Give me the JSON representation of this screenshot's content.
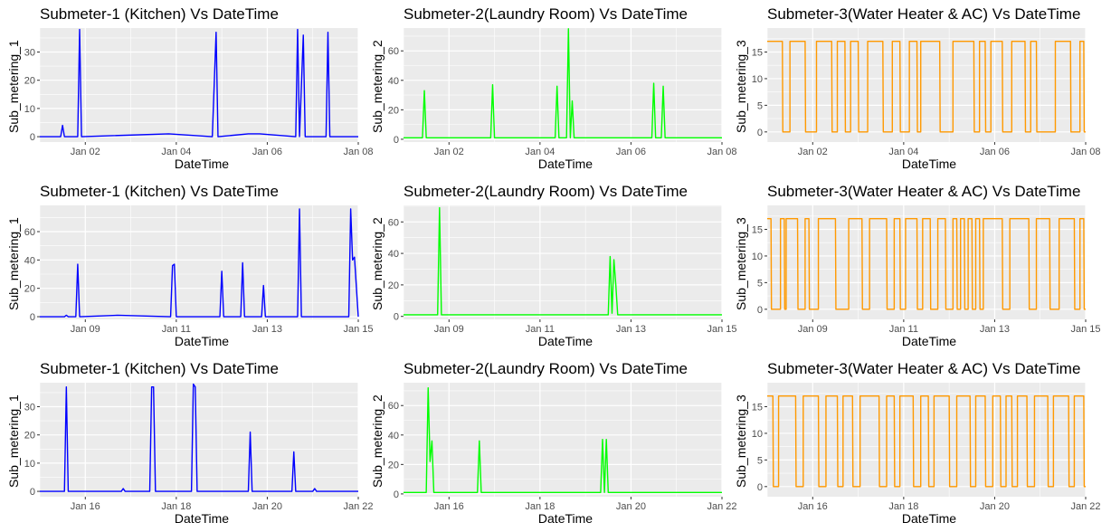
{
  "chart_data": [
    {
      "type": "line",
      "title": "Submeter-1 (Kitchen) Vs DateTime",
      "xlabel": "DateTime",
      "ylabel": "Sub_metering_1",
      "color": "#0000ff",
      "x_range": [
        "2007-01-01",
        "2007-01-08"
      ],
      "ylim": [
        0,
        38
      ],
      "yticks": [
        0,
        10,
        20,
        30
      ],
      "xticks": [
        "Jan 02",
        "Jan 04",
        "Jan 06",
        "Jan 08"
      ],
      "x": [
        "2007-01-01",
        "2007-01-01 11:00",
        "2007-01-01 12:00",
        "2007-01-01 13:00",
        "2007-01-01 20:00",
        "2007-01-01 21:00",
        "2007-01-01 22:00",
        "2007-01-03 20:00",
        "2007-01-04 19:00",
        "2007-01-04 21:00",
        "2007-01-04 22:00",
        "2007-01-05 14:00",
        "2007-01-05 20:00",
        "2007-01-06 15:00",
        "2007-01-06 16:00",
        "2007-01-06 17:00",
        "2007-01-06 19:00",
        "2007-01-06 20:00",
        "2007-01-07 07:00",
        "2007-01-07 08:00",
        "2007-01-07 09:00",
        "2007-01-08"
      ],
      "values": [
        0,
        0,
        4,
        0,
        0,
        38,
        0,
        1,
        0,
        37,
        0,
        1,
        1,
        0,
        38,
        0,
        36,
        0,
        0,
        37,
        0,
        0
      ]
    },
    {
      "type": "line",
      "title": "Submeter-2(Laundry Room) Vs DateTime",
      "xlabel": "DateTime",
      "ylabel": "Sub_metering_2",
      "color": "#00ff00",
      "x_range": [
        "2007-01-01",
        "2007-01-08"
      ],
      "ylim": [
        0,
        75
      ],
      "yticks": [
        0,
        20,
        40,
        60
      ],
      "xticks": [
        "Jan 02",
        "Jan 04",
        "Jan 06",
        "Jan 08"
      ],
      "x": [
        "2007-01-01",
        "2007-01-01 10:00",
        "2007-01-01 11:00",
        "2007-01-01 12:00",
        "2007-01-02 22:00",
        "2007-01-02 23:00",
        "2007-01-03 00:00",
        "2007-01-04 08:00",
        "2007-01-04 09:00",
        "2007-01-04 10:00",
        "2007-01-04 14:00",
        "2007-01-04 15:00",
        "2007-01-04 16:00",
        "2007-01-04 17:00",
        "2007-01-04 18:00",
        "2007-01-06 11:00",
        "2007-01-06 12:00",
        "2007-01-06 13:00",
        "2007-01-06 16:00",
        "2007-01-06 17:00",
        "2007-01-06 18:00",
        "2007-01-08"
      ],
      "values": [
        1,
        1,
        33,
        1,
        1,
        37,
        1,
        1,
        36,
        1,
        1,
        75,
        1,
        26,
        1,
        1,
        38,
        1,
        1,
        36,
        1,
        1
      ]
    },
    {
      "type": "line",
      "title": "Submeter-3(Water Heater & AC) Vs DateTime",
      "xlabel": "DateTime",
      "ylabel": "Sub_metering_3",
      "color": "#ff9900",
      "x_range": [
        "2007-01-01",
        "2007-01-08"
      ],
      "ylim": [
        0,
        19
      ],
      "yticks": [
        0,
        5,
        10,
        15
      ],
      "xticks": [
        "Jan 02",
        "Jan 04",
        "Jan 06",
        "Jan 08"
      ],
      "on_level": 17,
      "on_intervals": [
        [
          "2007-01-01 00:00",
          "2007-01-01 08:00"
        ],
        [
          "2007-01-01 12:00",
          "2007-01-01 20:00"
        ],
        [
          "2007-01-02 02:00",
          "2007-01-02 10:00"
        ],
        [
          "2007-01-02 13:00",
          "2007-01-02 17:00"
        ],
        [
          "2007-01-02 20:00",
          "2007-01-03 00:00"
        ],
        [
          "2007-01-03 05:00",
          "2007-01-03 13:00"
        ],
        [
          "2007-01-03 18:00",
          "2007-01-03 22:00"
        ],
        [
          "2007-01-04 03:00",
          "2007-01-04 07:00"
        ],
        [
          "2007-01-04 09:00",
          "2007-01-04 19:00"
        ],
        [
          "2007-01-05 02:00",
          "2007-01-05 13:00"
        ],
        [
          "2007-01-05 16:00",
          "2007-01-05 19:00"
        ],
        [
          "2007-01-05 22:00",
          "2007-01-06 04:00"
        ],
        [
          "2007-01-06 09:00",
          "2007-01-06 16:00"
        ],
        [
          "2007-01-06 19:00",
          "2007-01-06 22:00"
        ],
        [
          "2007-01-07 08:00",
          "2007-01-07 16:00"
        ],
        [
          "2007-01-07 21:00",
          "2007-01-07 23:00"
        ]
      ]
    },
    {
      "type": "line",
      "title": "Submeter-1 (Kitchen) Vs DateTime",
      "xlabel": "DateTime",
      "ylabel": "Sub_metering_1",
      "color": "#0000ff",
      "x_range": [
        "2007-01-08",
        "2007-01-15"
      ],
      "ylim": [
        0,
        78
      ],
      "yticks": [
        0,
        20,
        40,
        60
      ],
      "xticks": [
        "Jan 09",
        "Jan 11",
        "Jan 13",
        "Jan 15"
      ],
      "x": [
        "2007-01-08",
        "2007-01-08 13:00",
        "2007-01-08 14:00",
        "2007-01-08 15:00",
        "2007-01-08 19:00",
        "2007-01-08 20:00",
        "2007-01-08 21:00",
        "2007-01-09 17:00",
        "2007-01-10 21:00",
        "2007-01-10 22:00",
        "2007-01-10 23:00",
        "2007-01-11 00:00",
        "2007-01-11 23:00",
        "2007-01-12 00:00",
        "2007-01-12 01:00",
        "2007-01-12 10:00",
        "2007-01-12 11:00",
        "2007-01-12 12:00",
        "2007-01-12 21:00",
        "2007-01-12 22:00",
        "2007-01-12 23:00",
        "2007-01-13 16:00",
        "2007-01-13 17:00",
        "2007-01-13 18:00",
        "2007-01-14 19:00",
        "2007-01-14 20:00",
        "2007-01-14 21:00",
        "2007-01-14 22:00",
        "2007-01-15"
      ],
      "values": [
        0,
        0,
        1,
        0,
        0,
        37,
        0,
        1,
        0,
        36,
        37,
        0,
        0,
        32,
        0,
        0,
        38,
        0,
        0,
        22,
        0,
        0,
        76,
        0,
        0,
        76,
        40,
        42,
        0
      ]
    },
    {
      "type": "line",
      "title": "Submeter-2(Laundry Room) Vs DateTime",
      "xlabel": "DateTime",
      "ylabel": "Sub_metering_2",
      "color": "#00ff00",
      "x_range": [
        "2007-01-08",
        "2007-01-15"
      ],
      "ylim": [
        0,
        70
      ],
      "yticks": [
        0,
        20,
        40,
        60
      ],
      "xticks": [
        "Jan 09",
        "Jan 11",
        "Jan 13",
        "Jan 15"
      ],
      "x": [
        "2007-01-08",
        "2007-01-08 18:00",
        "2007-01-08 19:00",
        "2007-01-08 20:00",
        "2007-01-12 12:00",
        "2007-01-12 13:00",
        "2007-01-12 14:00",
        "2007-01-12 15:00",
        "2007-01-12 16:00",
        "2007-01-12 17:00",
        "2007-01-15"
      ],
      "values": [
        1,
        1,
        69,
        1,
        1,
        38,
        2,
        36,
        20,
        1,
        1
      ]
    },
    {
      "type": "line",
      "title": "Submeter-3(Water Heater & AC) Vs DateTime",
      "xlabel": "DateTime",
      "ylabel": "Sub_metering_3",
      "color": "#ff9900",
      "x_range": [
        "2007-01-08",
        "2007-01-15"
      ],
      "ylim": [
        0,
        19
      ],
      "yticks": [
        0,
        5,
        10,
        15
      ],
      "xticks": [
        "Jan 09",
        "Jan 11",
        "Jan 13",
        "Jan 15"
      ],
      "on_level": 17,
      "on_intervals": [
        [
          "2007-01-08 00:00",
          "2007-01-08 02:00"
        ],
        [
          "2007-01-08 07:00",
          "2007-01-08 09:00"
        ],
        [
          "2007-01-08 10:00",
          "2007-01-08 16:00"
        ],
        [
          "2007-01-08 20:00",
          "2007-01-08 22:00"
        ],
        [
          "2007-01-09 03:00",
          "2007-01-09 12:00"
        ],
        [
          "2007-01-09 19:00",
          "2007-01-10 02:00"
        ],
        [
          "2007-01-10 06:00",
          "2007-01-10 15:00"
        ],
        [
          "2007-01-10 19:00",
          "2007-01-10 22:00"
        ],
        [
          "2007-01-11 01:00",
          "2007-01-11 07:00"
        ],
        [
          "2007-01-11 10:00",
          "2007-01-11 14:00"
        ],
        [
          "2007-01-11 18:00",
          "2007-01-11 22:00"
        ],
        [
          "2007-01-12 02:00",
          "2007-01-12 04:00"
        ],
        [
          "2007-01-12 06:00",
          "2007-01-12 08:00"
        ],
        [
          "2007-01-12 10:00",
          "2007-01-12 12:00"
        ],
        [
          "2007-01-12 14:00",
          "2007-01-12 16:00"
        ],
        [
          "2007-01-12 18:00",
          "2007-01-13 04:00"
        ],
        [
          "2007-01-13 08:00",
          "2007-01-13 18:00"
        ],
        [
          "2007-01-13 22:00",
          "2007-01-14 05:00"
        ],
        [
          "2007-01-14 10:00",
          "2007-01-14 18:00"
        ],
        [
          "2007-01-14 21:00",
          "2007-01-14 23:00"
        ]
      ]
    },
    {
      "type": "line",
      "title": "Submeter-1 (Kitchen) Vs DateTime",
      "xlabel": "DateTime",
      "ylabel": "Sub_metering_1",
      "color": "#0000ff",
      "x_range": [
        "2007-01-15",
        "2007-01-22"
      ],
      "ylim": [
        0,
        38
      ],
      "yticks": [
        0,
        10,
        20,
        30
      ],
      "xticks": [
        "Jan 16",
        "Jan 18",
        "Jan 20",
        "Jan 22"
      ],
      "x": [
        "2007-01-15",
        "2007-01-15 13:00",
        "2007-01-15 14:00",
        "2007-01-15 15:00",
        "2007-01-16 19:00",
        "2007-01-16 20:00",
        "2007-01-16 21:00",
        "2007-01-17 10:00",
        "2007-01-17 11:00",
        "2007-01-17 12:00",
        "2007-01-17 13:00",
        "2007-01-18 08:00",
        "2007-01-18 09:00",
        "2007-01-18 10:00",
        "2007-01-18 11:00",
        "2007-01-19 14:00",
        "2007-01-19 15:00",
        "2007-01-19 16:00",
        "2007-01-20 13:00",
        "2007-01-20 14:00",
        "2007-01-20 15:00",
        "2007-01-21 00:00",
        "2007-01-21 01:00",
        "2007-01-21 02:00",
        "2007-01-22"
      ],
      "values": [
        0,
        0,
        37,
        0,
        0,
        1,
        0,
        0,
        37,
        37,
        0,
        0,
        38,
        37,
        0,
        0,
        21,
        0,
        0,
        14,
        0,
        0,
        1,
        0,
        0
      ]
    },
    {
      "type": "line",
      "title": "Submeter-2(Laundry Room) Vs DateTime",
      "xlabel": "DateTime",
      "ylabel": "Sub_metering_2",
      "color": "#00ff00",
      "x_range": [
        "2007-01-15",
        "2007-01-22"
      ],
      "ylim": [
        0,
        75
      ],
      "yticks": [
        0,
        20,
        40,
        60
      ],
      "xticks": [
        "Jan 16",
        "Jan 18",
        "Jan 20",
        "Jan 22"
      ],
      "x": [
        "2007-01-15",
        "2007-01-15 12:00",
        "2007-01-15 13:00",
        "2007-01-15 14:00",
        "2007-01-15 15:00",
        "2007-01-15 16:00",
        "2007-01-16 15:00",
        "2007-01-16 16:00",
        "2007-01-16 17:00",
        "2007-01-19 08:00",
        "2007-01-19 09:00",
        "2007-01-19 10:00",
        "2007-01-19 11:00",
        "2007-01-19 12:00",
        "2007-01-22"
      ],
      "values": [
        1,
        1,
        72,
        22,
        36,
        1,
        1,
        36,
        1,
        1,
        37,
        1,
        37,
        1,
        1
      ]
    },
    {
      "type": "line",
      "title": "Submeter-3(Water Heater & AC) Vs DateTime",
      "xlabel": "DateTime",
      "ylabel": "Sub_metering_3",
      "color": "#ff9900",
      "x_range": [
        "2007-01-15",
        "2007-01-22"
      ],
      "ylim": [
        0,
        19
      ],
      "yticks": [
        0,
        5,
        10,
        15
      ],
      "xticks": [
        "Jan 16",
        "Jan 18",
        "Jan 20",
        "Jan 22"
      ],
      "on_level": 17,
      "on_intervals": [
        [
          "2007-01-15 00:00",
          "2007-01-15 03:00"
        ],
        [
          "2007-01-15 06:00",
          "2007-01-15 15:00"
        ],
        [
          "2007-01-15 19:00",
          "2007-01-16 03:00"
        ],
        [
          "2007-01-16 07:00",
          "2007-01-16 13:00"
        ],
        [
          "2007-01-16 16:00",
          "2007-01-16 21:00"
        ],
        [
          "2007-01-17 01:00",
          "2007-01-17 11:00"
        ],
        [
          "2007-01-17 15:00",
          "2007-01-17 19:00"
        ],
        [
          "2007-01-17 22:00",
          "2007-01-18 05:00"
        ],
        [
          "2007-01-18 09:00",
          "2007-01-18 13:00"
        ],
        [
          "2007-01-18 16:00",
          "2007-01-19 00:00"
        ],
        [
          "2007-01-19 04:00",
          "2007-01-19 11:00"
        ],
        [
          "2007-01-19 14:00",
          "2007-01-19 19:00"
        ],
        [
          "2007-01-19 23:00",
          "2007-01-20 03:00"
        ],
        [
          "2007-01-20 06:00",
          "2007-01-20 09:00"
        ],
        [
          "2007-01-20 12:00",
          "2007-01-20 17:00"
        ],
        [
          "2007-01-20 21:00",
          "2007-01-21 04:00"
        ],
        [
          "2007-01-21 07:00",
          "2007-01-21 15:00"
        ],
        [
          "2007-01-21 18:00",
          "2007-01-21 23:00"
        ]
      ]
    }
  ]
}
